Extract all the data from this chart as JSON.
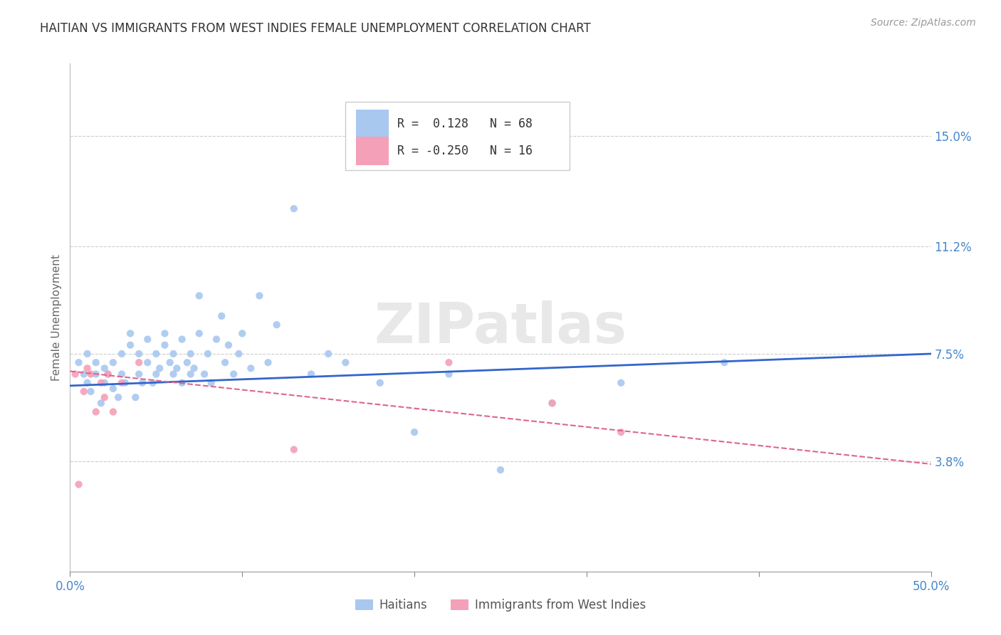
{
  "title": "HAITIAN VS IMMIGRANTS FROM WEST INDIES FEMALE UNEMPLOYMENT CORRELATION CHART",
  "source": "Source: ZipAtlas.com",
  "ylabel": "Female Unemployment",
  "x_ticks": [
    0.0,
    0.1,
    0.2,
    0.3,
    0.4,
    0.5
  ],
  "x_tick_labels": [
    "0.0%",
    "",
    "",
    "",
    "",
    "50.0%"
  ],
  "y_tick_vals_right": [
    0.15,
    0.112,
    0.075,
    0.038
  ],
  "y_tick_labels_right": [
    "15.0%",
    "11.2%",
    "7.5%",
    "3.8%"
  ],
  "xlim": [
    0.0,
    0.5
  ],
  "ylim": [
    0.0,
    0.175
  ],
  "r_haitian": 0.128,
  "n_haitian": 68,
  "r_westindies": -0.25,
  "n_westindies": 16,
  "haitian_color": "#a8c8f0",
  "westindies_color": "#f4a0b8",
  "trendline_haitian_color": "#3366cc",
  "trendline_westindies_color": "#dd6688",
  "background_color": "#ffffff",
  "grid_color": "#cccccc",
  "title_color": "#333333",
  "axis_label_color": "#4488cc",
  "tick_color": "#888888",
  "watermark_color": "#e8e8e8",
  "legend_border_color": "#cccccc",
  "haitian_scatter_x": [
    0.005,
    0.008,
    0.01,
    0.01,
    0.012,
    0.015,
    0.015,
    0.018,
    0.02,
    0.02,
    0.022,
    0.025,
    0.025,
    0.028,
    0.03,
    0.03,
    0.032,
    0.035,
    0.035,
    0.038,
    0.04,
    0.04,
    0.042,
    0.045,
    0.045,
    0.048,
    0.05,
    0.05,
    0.052,
    0.055,
    0.055,
    0.058,
    0.06,
    0.06,
    0.062,
    0.065,
    0.065,
    0.068,
    0.07,
    0.07,
    0.072,
    0.075,
    0.075,
    0.078,
    0.08,
    0.082,
    0.085,
    0.088,
    0.09,
    0.092,
    0.095,
    0.098,
    0.1,
    0.105,
    0.11,
    0.115,
    0.12,
    0.13,
    0.14,
    0.15,
    0.16,
    0.18,
    0.2,
    0.22,
    0.25,
    0.28,
    0.32,
    0.38
  ],
  "haitian_scatter_y": [
    0.072,
    0.068,
    0.065,
    0.075,
    0.062,
    0.068,
    0.072,
    0.058,
    0.065,
    0.07,
    0.068,
    0.063,
    0.072,
    0.06,
    0.068,
    0.075,
    0.065,
    0.078,
    0.082,
    0.06,
    0.068,
    0.075,
    0.065,
    0.08,
    0.072,
    0.065,
    0.068,
    0.075,
    0.07,
    0.078,
    0.082,
    0.072,
    0.068,
    0.075,
    0.07,
    0.065,
    0.08,
    0.072,
    0.068,
    0.075,
    0.07,
    0.095,
    0.082,
    0.068,
    0.075,
    0.065,
    0.08,
    0.088,
    0.072,
    0.078,
    0.068,
    0.075,
    0.082,
    0.07,
    0.095,
    0.072,
    0.085,
    0.125,
    0.068,
    0.075,
    0.072,
    0.065,
    0.048,
    0.068,
    0.035,
    0.058,
    0.065,
    0.072
  ],
  "westindies_scatter_x": [
    0.003,
    0.008,
    0.01,
    0.012,
    0.015,
    0.018,
    0.02,
    0.022,
    0.025,
    0.03,
    0.04,
    0.13,
    0.22,
    0.28,
    0.32,
    0.005
  ],
  "westindies_scatter_y": [
    0.068,
    0.062,
    0.07,
    0.068,
    0.055,
    0.065,
    0.06,
    0.068,
    0.055,
    0.065,
    0.072,
    0.042,
    0.072,
    0.058,
    0.048,
    0.03
  ],
  "trendline_haitian_y_start": 0.064,
  "trendline_haitian_y_end": 0.075,
  "trendline_westindies_y_start": 0.069,
  "trendline_westindies_y_end": 0.037
}
